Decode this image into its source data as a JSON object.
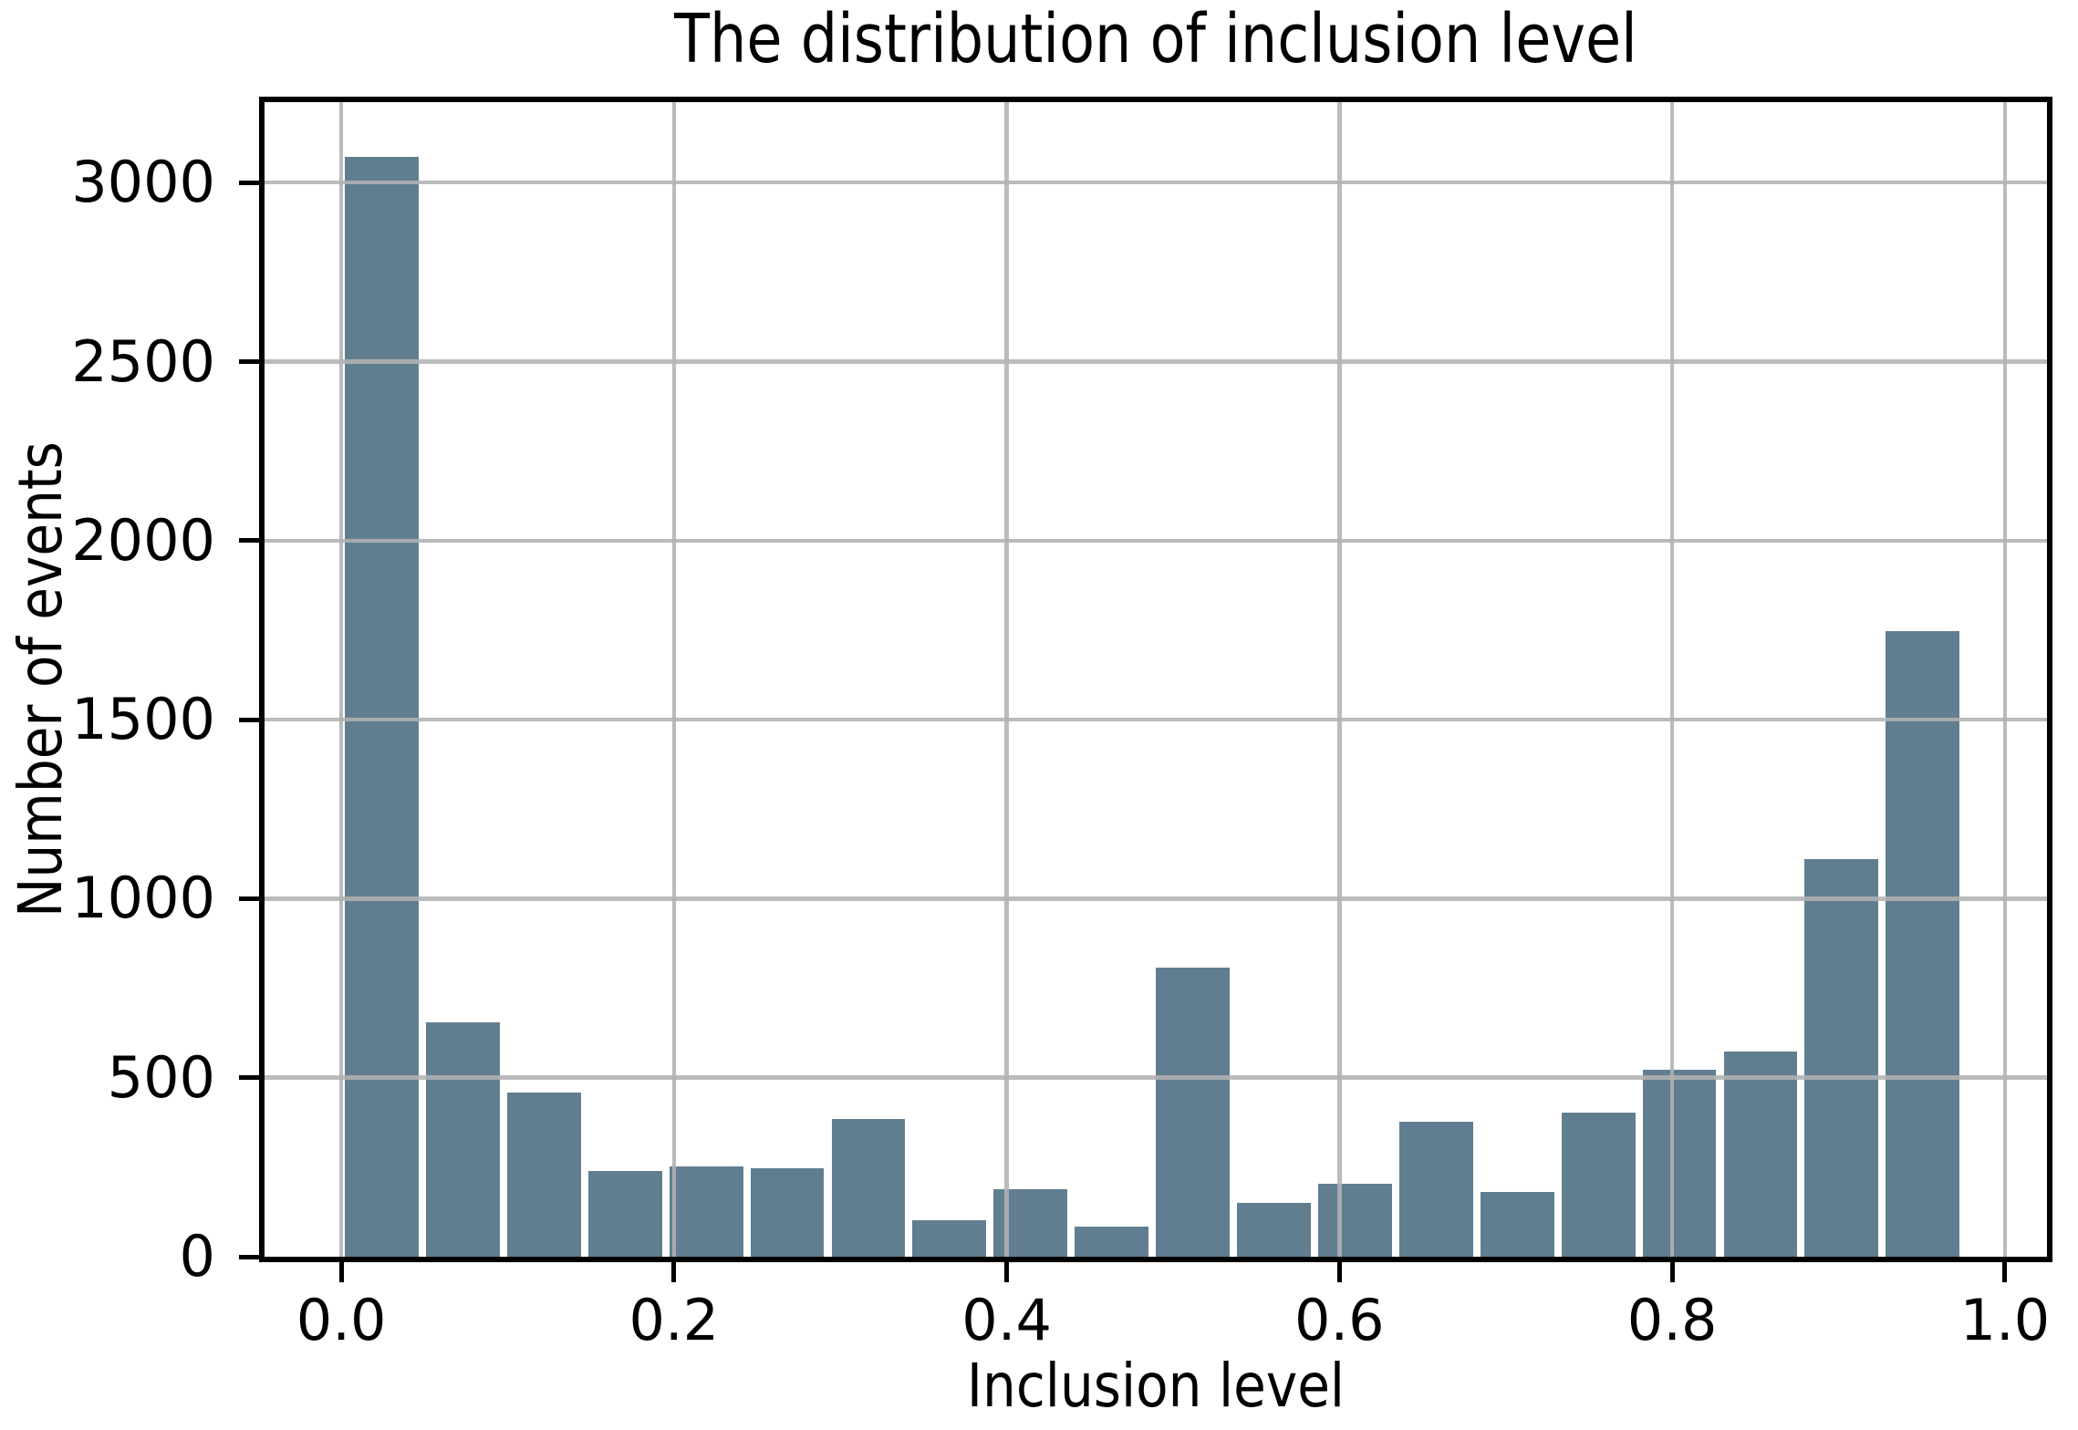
{
  "title": "The distribution of inclusion level",
  "axes": {
    "xlabel": "Inclusion level",
    "ylabel": "Number of events"
  },
  "chart_data": {
    "type": "bar",
    "subtype": "histogram",
    "title": "The distribution of inclusion level",
    "xlabel": "Inclusion level",
    "ylabel": "Number of events",
    "bin_start": 0.0,
    "bin_width": 0.04875,
    "bar_fill_fraction": 0.91,
    "counts": [
      3071,
      655,
      458,
      240,
      252,
      248,
      384,
      103,
      188,
      83,
      807,
      150,
      203,
      376,
      181,
      403,
      521,
      574,
      1110,
      1747
    ],
    "x_tick_values": [
      0.0,
      0.2,
      0.4,
      0.6,
      0.8,
      1.0
    ],
    "x_tick_labels": [
      "0.0",
      "0.2",
      "0.4",
      "0.6",
      "0.8",
      "1.0"
    ],
    "y_tick_values": [
      0,
      500,
      1000,
      1500,
      2000,
      2500,
      3000
    ],
    "y_tick_labels": [
      "0",
      "500",
      "1000",
      "1500",
      "2000",
      "2500",
      "3000"
    ],
    "xlim": [
      -0.0461,
      1.0253
    ],
    "ylim": [
      0,
      3224.5
    ],
    "grid": true,
    "grid_above_bars": true,
    "legend": null,
    "colors": {
      "bar": "#617e90",
      "grid": "#b2b2b2",
      "spine": "#000000",
      "text": "#000000",
      "background": "#ffffff"
    }
  }
}
